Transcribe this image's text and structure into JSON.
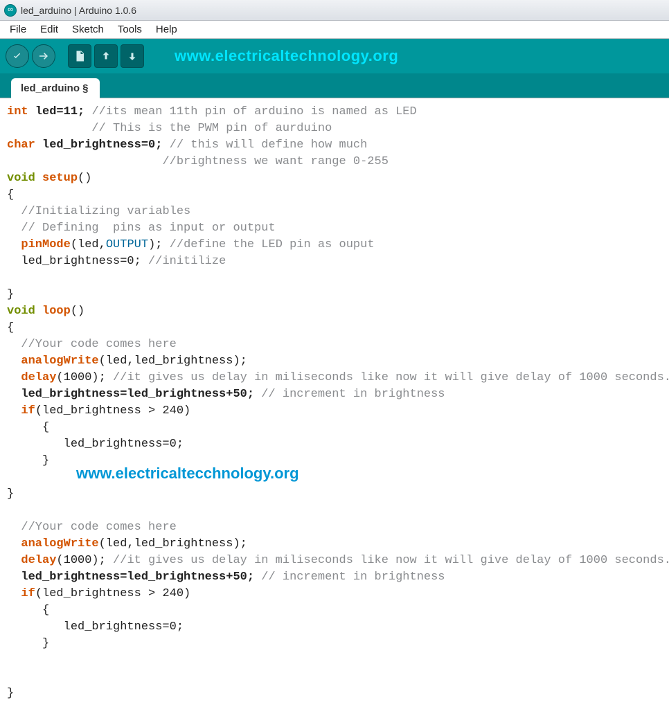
{
  "window": {
    "title": "led_arduino | Arduino 1.0.6"
  },
  "menubar": {
    "items": [
      "File",
      "Edit",
      "Sketch",
      "Tools",
      "Help"
    ]
  },
  "toolbar": {
    "buttons": [
      {
        "name": "verify-button",
        "icon": "check"
      },
      {
        "name": "upload-button",
        "icon": "arrow-right"
      },
      {
        "name": "new-button",
        "icon": "file"
      },
      {
        "name": "open-button",
        "icon": "arrow-up"
      },
      {
        "name": "save-button",
        "icon": "arrow-down"
      }
    ],
    "url_text": "www.electricaltechnology.org"
  },
  "tab": {
    "label": "led_arduino §"
  },
  "code": {
    "lines": [
      {
        "t": [
          {
            "c": "kw-type",
            "v": "int"
          },
          {
            "c": "",
            "v": " "
          },
          {
            "c": "ident",
            "v": "led=11;"
          },
          {
            "c": "",
            "v": " "
          },
          {
            "c": "comment",
            "v": "//its mean 11th pin of arduino is named as LED"
          }
        ]
      },
      {
        "t": [
          {
            "c": "",
            "v": "            "
          },
          {
            "c": "comment",
            "v": "// This is the PWM pin of aurduino"
          }
        ]
      },
      {
        "t": [
          {
            "c": "kw-type",
            "v": "char"
          },
          {
            "c": "",
            "v": " "
          },
          {
            "c": "ident",
            "v": "led_brightness=0;"
          },
          {
            "c": "",
            "v": " "
          },
          {
            "c": "comment",
            "v": "// this will define how much"
          }
        ]
      },
      {
        "t": [
          {
            "c": "",
            "v": "                      "
          },
          {
            "c": "comment",
            "v": "//brightness we want range 0-255"
          }
        ]
      },
      {
        "t": [
          {
            "c": "kw-void",
            "v": "void"
          },
          {
            "c": "",
            "v": " "
          },
          {
            "c": "kw-fn",
            "v": "setup"
          },
          {
            "c": "",
            "v": "()"
          }
        ]
      },
      {
        "t": [
          {
            "c": "",
            "v": "{"
          }
        ]
      },
      {
        "t": [
          {
            "c": "",
            "v": "  "
          },
          {
            "c": "comment",
            "v": "//Initializing variables"
          }
        ]
      },
      {
        "t": [
          {
            "c": "",
            "v": "  "
          },
          {
            "c": "comment",
            "v": "// Defining  pins as input or output"
          }
        ]
      },
      {
        "t": [
          {
            "c": "",
            "v": "  "
          },
          {
            "c": "kw-fn",
            "v": "pinMode"
          },
          {
            "c": "",
            "v": "(led,"
          },
          {
            "c": "const",
            "v": "OUTPUT"
          },
          {
            "c": "",
            "v": "); "
          },
          {
            "c": "comment",
            "v": "//define the LED pin as ouput"
          }
        ]
      },
      {
        "t": [
          {
            "c": "",
            "v": "  led_brightness=0; "
          },
          {
            "c": "comment",
            "v": "//initilize"
          }
        ]
      },
      {
        "t": [
          {
            "c": "",
            "v": ""
          }
        ]
      },
      {
        "t": [
          {
            "c": "",
            "v": "}"
          }
        ]
      },
      {
        "t": [
          {
            "c": "kw-void",
            "v": "void"
          },
          {
            "c": "",
            "v": " "
          },
          {
            "c": "kw-fn",
            "v": "loop"
          },
          {
            "c": "",
            "v": "()"
          }
        ]
      },
      {
        "t": [
          {
            "c": "",
            "v": "{"
          }
        ]
      },
      {
        "t": [
          {
            "c": "",
            "v": "  "
          },
          {
            "c": "comment",
            "v": "//Your code comes here"
          }
        ]
      },
      {
        "t": [
          {
            "c": "",
            "v": "  "
          },
          {
            "c": "kw-fn",
            "v": "analogWrite"
          },
          {
            "c": "",
            "v": "(led,led_brightness);"
          }
        ]
      },
      {
        "t": [
          {
            "c": "",
            "v": "  "
          },
          {
            "c": "kw-fn",
            "v": "delay"
          },
          {
            "c": "",
            "v": "(1000); "
          },
          {
            "c": "comment",
            "v": "//it gives us delay in miliseconds like now it will give delay of 1000 seconds."
          }
        ]
      },
      {
        "t": [
          {
            "c": "",
            "v": "  "
          },
          {
            "c": "ident",
            "v": "led_brightness=led_brightness+50;"
          },
          {
            "c": "",
            "v": " "
          },
          {
            "c": "comment",
            "v": "// increment in brightness"
          }
        ]
      },
      {
        "t": [
          {
            "c": "",
            "v": "  "
          },
          {
            "c": "kw-fn",
            "v": "if"
          },
          {
            "c": "",
            "v": "(led_brightness > 240)"
          }
        ]
      },
      {
        "t": [
          {
            "c": "",
            "v": "     {"
          }
        ]
      },
      {
        "t": [
          {
            "c": "",
            "v": "        led_brightness=0;"
          }
        ]
      },
      {
        "t": [
          {
            "c": "",
            "v": "     }"
          }
        ]
      },
      {
        "t": [
          {
            "c": "",
            "v": ""
          }
        ]
      },
      {
        "t": [
          {
            "c": "",
            "v": "}"
          }
        ]
      },
      {
        "t": [
          {
            "c": "",
            "v": ""
          }
        ]
      },
      {
        "t": [
          {
            "c": "",
            "v": "  "
          },
          {
            "c": "comment",
            "v": "//Your code comes here"
          }
        ]
      },
      {
        "t": [
          {
            "c": "",
            "v": "  "
          },
          {
            "c": "kw-fn",
            "v": "analogWrite"
          },
          {
            "c": "",
            "v": "(led,led_brightness);"
          }
        ]
      },
      {
        "t": [
          {
            "c": "",
            "v": "  "
          },
          {
            "c": "kw-fn",
            "v": "delay"
          },
          {
            "c": "",
            "v": "(1000); "
          },
          {
            "c": "comment",
            "v": "//it gives us delay in miliseconds like now it will give delay of 1000 seconds."
          }
        ]
      },
      {
        "t": [
          {
            "c": "",
            "v": "  "
          },
          {
            "c": "ident",
            "v": "led_brightness=led_brightness+50;"
          },
          {
            "c": "",
            "v": " "
          },
          {
            "c": "comment",
            "v": "// increment in brightness"
          }
        ]
      },
      {
        "t": [
          {
            "c": "",
            "v": "  "
          },
          {
            "c": "kw-fn",
            "v": "if"
          },
          {
            "c": "",
            "v": "(led_brightness > 240)"
          }
        ]
      },
      {
        "t": [
          {
            "c": "",
            "v": "     {"
          }
        ]
      },
      {
        "t": [
          {
            "c": "",
            "v": "        led_brightness=0;"
          }
        ]
      },
      {
        "t": [
          {
            "c": "",
            "v": "     }"
          }
        ]
      },
      {
        "t": [
          {
            "c": "",
            "v": ""
          }
        ]
      },
      {
        "t": [
          {
            "c": "",
            "v": ""
          }
        ]
      },
      {
        "t": [
          {
            "c": "",
            "v": "}"
          }
        ]
      }
    ]
  },
  "watermark": {
    "text": "www.electricaltecchnology.org"
  },
  "colors": {
    "toolbar_bg": "#00979c",
    "tabbar_bg": "#00878c",
    "url_text": "#00e5ff",
    "watermark": "#0097d6",
    "kw_type": "#d35400",
    "kw_void": "#728e00",
    "const": "#006699",
    "comment": "#8a8c8f"
  }
}
